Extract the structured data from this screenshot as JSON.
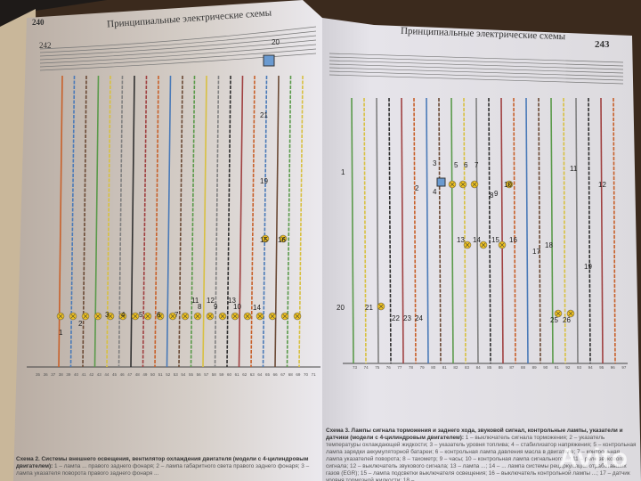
{
  "left_page": {
    "page_number_outer": "240",
    "page_number_inner": "242",
    "running_header": "Принципиальные электрические схемы",
    "component_labels": [
      "20",
      "21",
      "19",
      "15",
      "16",
      "1",
      "2",
      "3",
      "4",
      "5",
      "6",
      "7",
      "8",
      "9",
      "10",
      "11",
      "12",
      "13",
      "14"
    ],
    "terminal_numbers": [
      "35",
      "36",
      "37",
      "38",
      "39",
      "40",
      "41",
      "42",
      "43",
      "44",
      "45",
      "46",
      "47",
      "48",
      "49",
      "50",
      "51",
      "52",
      "53",
      "54",
      "55",
      "56",
      "57",
      "58",
      "59",
      "60",
      "61",
      "62",
      "63",
      "64",
      "65",
      "66",
      "67",
      "68",
      "69",
      "70",
      "71"
    ],
    "caption_title": "Схема 2. Системы внешнего освещения, вентилятор охлаждения двигателя (модели с 4-цилиндровым двигателем):",
    "caption_body": "1 – лампа ... правого заднего фонаря; 2 – лампа габаритного света правого заднего фонаря; 3 – лампа указателя поворота правого заднего фонаря ..."
  },
  "right_page": {
    "page_number": "243",
    "running_header": "Принципиальные электрические схемы",
    "component_labels": [
      "1",
      "2",
      "3",
      "4",
      "5",
      "6",
      "7",
      "8",
      "9",
      "10",
      "11",
      "12",
      "13",
      "14",
      "15",
      "16",
      "17",
      "18",
      "19",
      "20",
      "21",
      "22",
      "23",
      "24",
      "25",
      "26"
    ],
    "terminal_numbers": [
      "73",
      "74",
      "75",
      "76",
      "77",
      "78",
      "79",
      "80",
      "81",
      "82",
      "83",
      "84",
      "85",
      "86",
      "87",
      "88",
      "89",
      "90",
      "91",
      "92",
      "93",
      "94",
      "95",
      "96",
      "97"
    ],
    "caption_title": "Схема 3. Лампы сигнала торможения и заднего хода, звуковой сигнал, контрольные лампы, указатели и датчики (модели с 4-цилиндровым двигателем):",
    "caption_body": "1 – выключатель сигнала торможения; 2 – указатель температуры охлаждающей жидкости; 3 – указатель уровня топлива; 4 – стабилизатор напряжения; 5 – контрольная лампа зарядки аккумуляторной батареи; 6 – контрольная лампа давления масла в двигателе; 7 – контрольная лампа указателей поворота; 8 – тахометр; 9 – часы; 10 – контрольная лампа сигнального ...; 11 – реле звукового сигнала; 12 – выключатель звукового сигнала; 13 – лампа ...; 14 – ... лампа системы рециркуляции отработавших газов (EGR); 15 – лампа подсветки выключателя освещения; 16 – выключатель контрольной лампы ...; 17 – датчик уровня тормозной жидкости; 18 – ..."
  },
  "watermark": "Avito",
  "colors": {
    "background": "#3b2a1d",
    "page_left": "#d6cfc9",
    "page_right": "#e3e1e6",
    "lamp": "#f0c020",
    "wires": [
      "#c8602a",
      "#4a7ab8",
      "#6b4a35",
      "#5a9a4a",
      "#d8c040",
      "#808080",
      "#303030",
      "#a04040"
    ]
  }
}
